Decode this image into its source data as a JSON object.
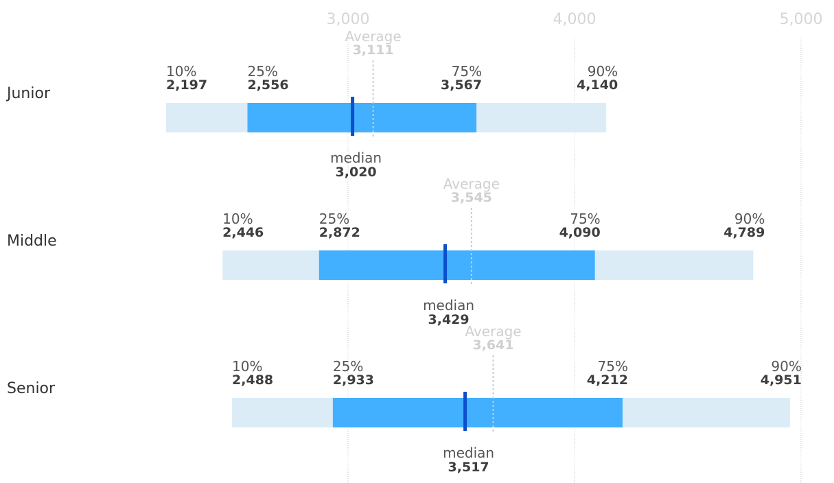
{
  "chart_data": {
    "type": "box-range",
    "x_range": [
      2000,
      5000
    ],
    "ticks": [
      {
        "value": 3000,
        "label": "3,000"
      },
      {
        "value": 4000,
        "label": "4,000"
      },
      {
        "value": 5000,
        "label": "5,000"
      }
    ],
    "labels": {
      "p10": "10%",
      "p25": "25%",
      "p75": "75%",
      "p90": "90%",
      "median": "median",
      "average": "Average"
    },
    "colors": {
      "outer_bar": "#dbecf7",
      "inner_bar": "#42b0ff",
      "median_marker": "#0a4fcc",
      "average_marker": "#cccccc",
      "grid": "#c8c8c8"
    },
    "rows": [
      {
        "name": "Junior",
        "p10": 2197,
        "p10_label": "2,197",
        "p25": 2556,
        "p25_label": "2,556",
        "median": 3020,
        "median_label": "3,020",
        "average": 3111,
        "average_label": "3,111",
        "p75": 3567,
        "p75_label": "3,567",
        "p90": 4140,
        "p90_label": "4,140"
      },
      {
        "name": "Middle",
        "p10": 2446,
        "p10_label": "2,446",
        "p25": 2872,
        "p25_label": "2,872",
        "median": 3429,
        "median_label": "3,429",
        "average": 3545,
        "average_label": "3,545",
        "p75": 4090,
        "p75_label": "4,090",
        "p90": 4789,
        "p90_label": "4,789"
      },
      {
        "name": "Senior",
        "p10": 2488,
        "p10_label": "2,488",
        "p25": 2933,
        "p25_label": "2,933",
        "median": 3517,
        "median_label": "3,517",
        "average": 3641,
        "average_label": "3,641",
        "p75": 4212,
        "p75_label": "4,212",
        "p90": 4951,
        "p90_label": "4,951"
      }
    ]
  }
}
